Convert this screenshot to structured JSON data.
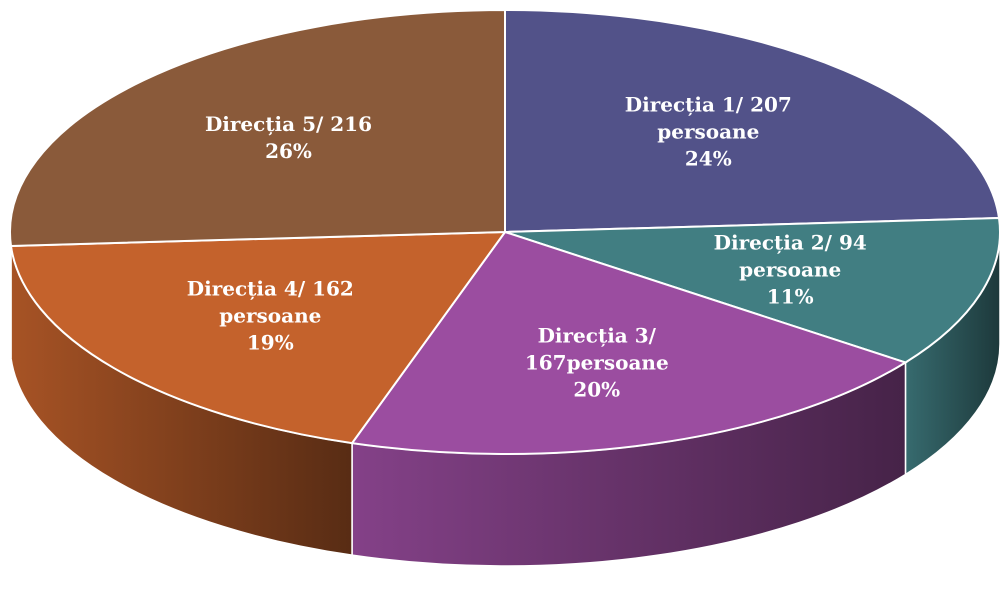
{
  "chart_data": {
    "type": "pie",
    "categories": [
      "Direcția 1/ 207 persoane",
      "Direcția 2/ 94 persoane",
      "Direcția 3/ 167persoane",
      "Direcția 4/ 162 persoane",
      "Direcția 5/ 216"
    ],
    "values": [
      24,
      11,
      20,
      19,
      26
    ],
    "value_labels": [
      "24%",
      "11%",
      "20%",
      "19%",
      "26%"
    ],
    "colors": [
      "#525289",
      "#417e82",
      "#9b4da0",
      "#c4622c",
      "#8a5a3a"
    ]
  }
}
